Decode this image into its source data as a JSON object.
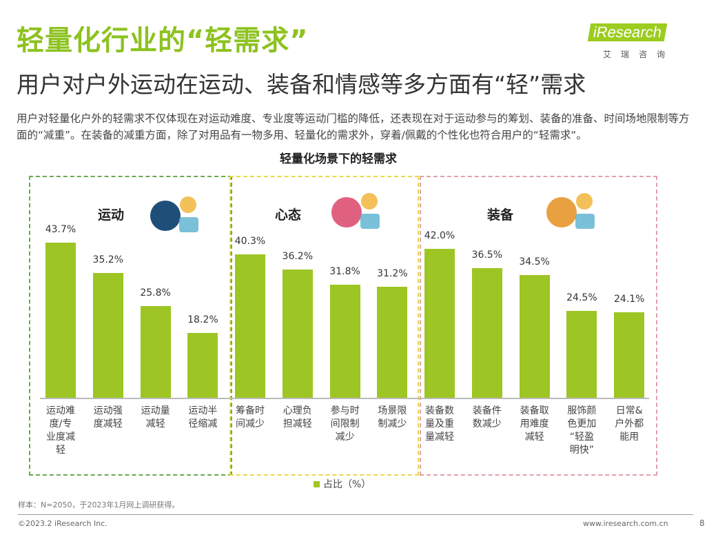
{
  "title": "轻量化行业的“轻需求”",
  "subtitle": "用户对户外运动在运动、装备和情感等多方面有“轻”需求",
  "logo": {
    "brand": "iResearch",
    "sub": "艾瑞咨询"
  },
  "description": "用户对轻量化户外的轻需求不仅体现在对运动难度、专业度等运动门槛的降低，还表现在对于运动参与的筹划、装备的准备、时间场地限制等方面的“减重”。在装备的减重方面，除了对用品有一物多用、轻量化的需求外，穿着/佩戴的个性化也符合用户的“轻需求“。",
  "chart_data": {
    "type": "bar",
    "title": "轻量化场景下的轻需求",
    "legend": "占比（%）",
    "ylim": [
      0,
      50
    ],
    "groups": [
      {
        "name": "运动",
        "color": "#6aa84f",
        "categories": [
          "运动难度/专业度减轻",
          "运动强度减轻",
          "运动量减轻",
          "运动半径缩减"
        ],
        "values": [
          43.7,
          35.2,
          25.8,
          18.2
        ],
        "labels": [
          "43.7%",
          "35.2%",
          "25.8%",
          "18.2%"
        ],
        "cat_display": [
          "运动难\n度/专\n业度减\n轻",
          "运动强\n度减轻",
          "运动量\n减轻",
          "运动半\n径缩减"
        ]
      },
      {
        "name": "心态",
        "color": "#e8d84a",
        "categories": [
          "筹备时间减少",
          "心理负担减轻",
          "参与时间限制减少",
          "场景限制减少"
        ],
        "values": [
          40.3,
          36.2,
          31.8,
          31.2
        ],
        "labels": [
          "40.3%",
          "36.2%",
          "31.8%",
          "31.2%"
        ],
        "cat_display": [
          "筹备时\n间减少",
          "心理负\n担减轻",
          "参与时\n间限制\n减少",
          "场景限\n制减少"
        ]
      },
      {
        "name": "装备",
        "color": "#e0a0a8",
        "categories": [
          "装备数量及重量减轻",
          "装备件数减少",
          "装备取用难度减轻",
          "服饰颜色更加“轻盈明快”",
          "日常&户外都能用"
        ],
        "values": [
          42.0,
          36.5,
          34.5,
          24.5,
          24.1
        ],
        "labels": [
          "42.0%",
          "36.5%",
          "34.5%",
          "24.5%",
          "24.1%"
        ],
        "cat_display": [
          "装备数\n量及重\n量减轻",
          "装备件\n数减少",
          "装备取\n用难度\n减轻",
          "服饰颜\n色更加\n“轻盈\n明快”",
          "日常&\n户外都\n能用"
        ]
      }
    ]
  },
  "footer": {
    "note": "样本：N=2050，于2023年1月网上调研获得。",
    "copyright": "©2023.2 iResearch Inc.",
    "url": "www.iresearch.com.cn",
    "page": "8"
  }
}
